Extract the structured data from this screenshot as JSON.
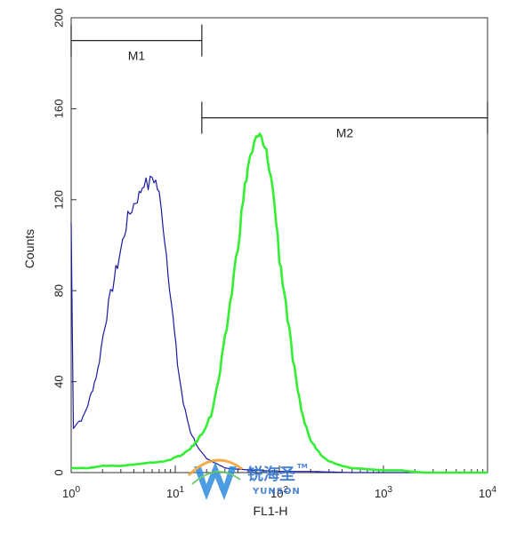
{
  "chart_data": {
    "type": "line",
    "title": "",
    "xlabel": "FL1-H",
    "ylabel": "Counts",
    "xscale": "log",
    "xlim": [
      1,
      10000
    ],
    "ylim": [
      0,
      200
    ],
    "grid": false,
    "x_ticks": [
      {
        "value": 1,
        "base": "10",
        "exp": "0"
      },
      {
        "value": 10,
        "base": "10",
        "exp": "1"
      },
      {
        "value": 100,
        "base": "10",
        "exp": "2"
      },
      {
        "value": 1000,
        "base": "10",
        "exp": "3"
      },
      {
        "value": 10000,
        "base": "10",
        "exp": "4"
      }
    ],
    "y_ticks": [
      {
        "value": 0,
        "label": "0"
      },
      {
        "value": 40,
        "label": "40"
      },
      {
        "value": 80,
        "label": "80"
      },
      {
        "value": 120,
        "label": "120"
      },
      {
        "value": 160,
        "label": "160"
      },
      {
        "value": 200,
        "label": "200"
      }
    ],
    "markers": [
      {
        "label": "M1",
        "x_start": 1,
        "x_end": 18,
        "y": 190
      },
      {
        "label": "M2",
        "x_start": 18,
        "x_end": 10000,
        "y": 156
      }
    ],
    "series": [
      {
        "color": "#1a1aa6",
        "x": [
          1.0,
          1.05,
          1.15,
          1.3,
          1.5,
          1.8,
          2.1,
          2.5,
          3.0,
          3.5,
          4.0,
          4.5,
          5.0,
          5.5,
          6.0,
          6.5,
          7.0,
          7.7,
          8.5,
          9.5,
          10.5,
          12,
          14,
          17,
          20,
          25,
          30,
          40,
          60,
          100,
          200,
          500,
          1000,
          10000
        ],
        "y": [
          110,
          20,
          22,
          24,
          32,
          45,
          65,
          82,
          98,
          112,
          118,
          122,
          128,
          126,
          130,
          128,
          122,
          108,
          90,
          68,
          48,
          30,
          18,
          10,
          6,
          4,
          2,
          1.5,
          1,
          0.5,
          0.5,
          0,
          0,
          0
        ]
      },
      {
        "color": "#33ee33",
        "x": [
          1.0,
          1.5,
          2,
          3,
          5,
          8,
          12,
          15,
          18,
          22,
          26,
          30,
          35,
          40,
          45,
          50,
          55,
          60,
          65,
          70,
          75,
          80,
          90,
          100,
          115,
          130,
          150,
          175,
          200,
          250,
          300,
          400,
          500,
          700,
          1000,
          1500,
          1800,
          2500,
          10000
        ],
        "y": [
          2,
          2,
          3,
          3,
          4,
          5,
          8,
          12,
          17,
          25,
          40,
          58,
          80,
          100,
          120,
          135,
          142,
          146,
          148,
          144,
          140,
          135,
          118,
          95,
          75,
          55,
          35,
          22,
          14,
          8,
          5,
          3,
          2,
          1.5,
          1,
          1,
          0.5,
          0,
          0
        ]
      }
    ]
  },
  "watermark": {
    "text_cn": "锐海圣",
    "text_en": "YUNSON",
    "tm": "TM"
  }
}
